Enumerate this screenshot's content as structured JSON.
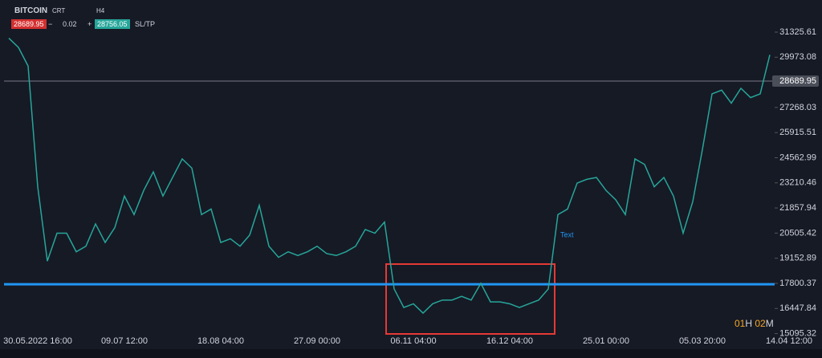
{
  "toolbar": {
    "symbol": "BITCOIN",
    "type": "CRT",
    "timeframe": "H4",
    "sell": "28689.95",
    "minus": "−",
    "volume": "0.02",
    "plus": "+",
    "buy": "28756.05",
    "sltp": "SL/TP"
  },
  "annotation": "Text",
  "timer": [
    "01",
    "H",
    "02",
    "M"
  ],
  "chart_data": {
    "type": "line",
    "color": "#26a69a",
    "categories": [
      null,
      null,
      null,
      "30.05.2022 16:00",
      null,
      null,
      null,
      null,
      null,
      null,
      null,
      null,
      "09.07 12:00",
      null,
      null,
      null,
      null,
      null,
      null,
      null,
      null,
      null,
      "18.08 04:00",
      null,
      null,
      null,
      null,
      null,
      null,
      null,
      null,
      null,
      "27.09 00:00",
      null,
      null,
      null,
      null,
      null,
      null,
      null,
      null,
      null,
      "06.11 04:00",
      null,
      null,
      null,
      null,
      null,
      null,
      null,
      null,
      null,
      "16.12 04:00",
      null,
      null,
      null,
      null,
      null,
      null,
      null,
      null,
      null,
      "25.01 00:00",
      null,
      null,
      null,
      null,
      null,
      null,
      null,
      null,
      null,
      "05.03 20:00",
      null,
      null,
      null,
      null,
      null,
      null,
      null,
      null,
      "14.04 12:00"
    ],
    "values": [
      31000,
      30500,
      29500,
      23000,
      19000,
      20500,
      20500,
      19500,
      19800,
      21000,
      20000,
      20800,
      22500,
      21500,
      22800,
      23800,
      22500,
      23500,
      24500,
      24000,
      21500,
      21800,
      20000,
      20200,
      19800,
      20400,
      22000,
      19800,
      19200,
      19500,
      19300,
      19500,
      19800,
      19400,
      19300,
      19500,
      19800,
      20700,
      20500,
      21100,
      17500,
      16500,
      16700,
      16200,
      16700,
      16900,
      16900,
      17100,
      16900,
      17800,
      16800,
      16800,
      16700,
      16500,
      16700,
      16900,
      17500,
      21500,
      21800,
      23200,
      23400,
      23500,
      22800,
      22300,
      21500,
      24500,
      24200,
      23000,
      23500,
      22500,
      20500,
      22200,
      25000,
      28000,
      28200,
      27500,
      28300,
      27800,
      28000,
      30100,
      null,
      null
    ],
    "ylim": [
      14991,
      33054
    ],
    "yticks": [
      31325.61,
      29973.08,
      27268.03,
      25915.51,
      24562.99,
      23210.46,
      21857.94,
      20505.42,
      19152.89,
      17800.37,
      16447.84,
      15095.32
    ],
    "current_price": 28689.95,
    "support_level": 17750
  }
}
